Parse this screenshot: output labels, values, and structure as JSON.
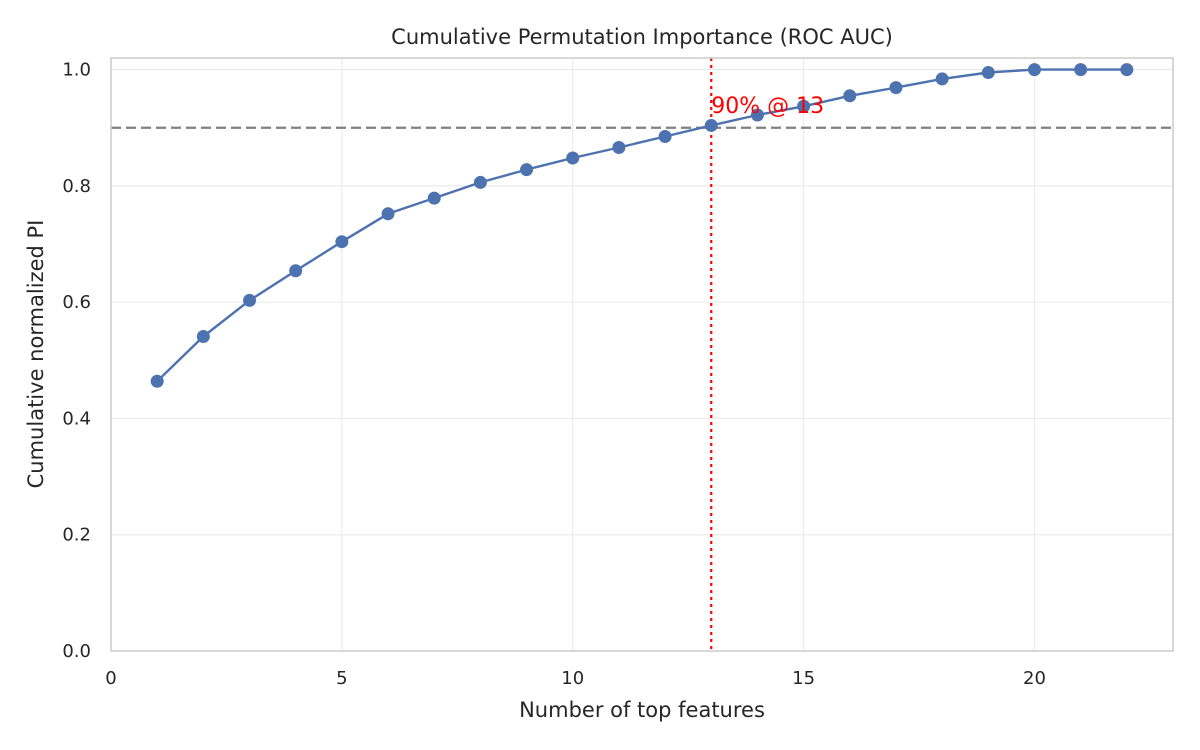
{
  "chart_data": {
    "type": "line",
    "title": "Cumulative Permutation Importance (ROC AUC)",
    "xlabel": "Number of top features",
    "ylabel": "Cumulative normalized PI",
    "xlim": [
      0,
      23
    ],
    "ylim": [
      0,
      1.02
    ],
    "xticks": [
      0,
      5,
      10,
      15,
      20
    ],
    "xtick_labels": [
      "0",
      "5",
      "10",
      "15",
      "20"
    ],
    "yticks": [
      0,
      0.2,
      0.4,
      0.6,
      0.8,
      1.0
    ],
    "ytick_labels": [
      "0.0",
      "0.2",
      "0.4",
      "0.6",
      "0.8",
      "1.0"
    ],
    "grid": true,
    "series": [
      {
        "color": "#4c72b0",
        "marker": "circle",
        "x": [
          1,
          2,
          3,
          4,
          5,
          6,
          7,
          8,
          9,
          10,
          11,
          12,
          13,
          14,
          15,
          16,
          17,
          18,
          19,
          20,
          21,
          22
        ],
        "y": [
          0.464,
          0.541,
          0.603,
          0.654,
          0.704,
          0.752,
          0.779,
          0.806,
          0.828,
          0.848,
          0.866,
          0.885,
          0.904,
          0.922,
          0.937,
          0.955,
          0.969,
          0.984,
          0.995,
          1.0,
          1.0,
          1.0
        ]
      }
    ],
    "reference_lines": [
      {
        "orientation": "horizontal",
        "value": 0.9,
        "style": "dashed",
        "color": "#808080"
      },
      {
        "orientation": "vertical",
        "value": 13,
        "style": "dotted",
        "color": "#ff0000"
      }
    ],
    "annotations": [
      {
        "text": "90% @ 13",
        "x": 13,
        "y": 0.925,
        "color": "#ff0000"
      }
    ]
  }
}
